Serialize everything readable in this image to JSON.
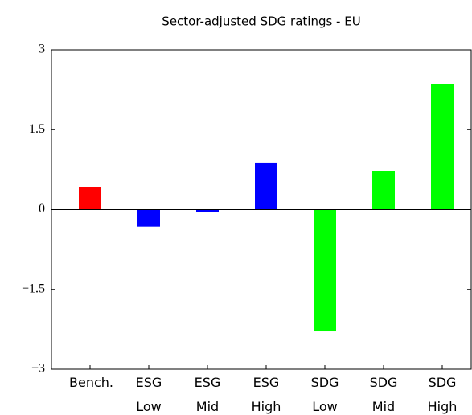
{
  "chart_data": {
    "type": "bar",
    "title": "Sector-adjusted SDG ratings - EU",
    "categories": [
      "Bench.",
      "ESG Low",
      "ESG Mid",
      "ESG High",
      "SDG Low",
      "SDG Mid",
      "SDG High"
    ],
    "values": [
      0.43,
      -0.32,
      -0.05,
      0.87,
      -2.29,
      0.72,
      2.36
    ],
    "colors": [
      "#ff0000",
      "#0000ff",
      "#0000ff",
      "#0000ff",
      "#00ff00",
      "#00ff00",
      "#00ff00"
    ],
    "ylim": [
      -3,
      3
    ],
    "yticks": [
      {
        "value": -3,
        "label": "−3"
      },
      {
        "value": -1.5,
        "label": "−1.5"
      },
      0,
      1.5,
      3
    ],
    "grid": false
  }
}
